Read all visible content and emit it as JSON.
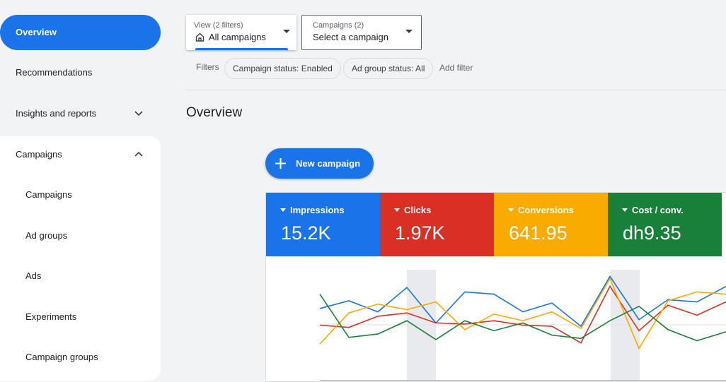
{
  "sidebar": {
    "items": [
      "Overview",
      "Recommendations",
      "Insights and reports",
      "Campaigns"
    ],
    "sub_items": [
      "Campaigns",
      "Ad groups",
      "Ads",
      "Experiments",
      "Campaign groups"
    ]
  },
  "toolbar": {
    "view": {
      "label": "View (2 filters)",
      "value": "All campaigns"
    },
    "campaigns": {
      "label": "Campaigns (2)",
      "value": "Select a campaign"
    },
    "filters_label": "Filters",
    "chips": [
      "Campaign status: Enabled",
      "Ad group status: All"
    ],
    "add_filter": "Add filter"
  },
  "page_title": "Overview",
  "new_campaign": "New campaign",
  "metrics": [
    {
      "name": "Impressions",
      "value": "15.2K",
      "color": "#1a73e8"
    },
    {
      "name": "Clicks",
      "value": "1.97K",
      "color": "#d93025"
    },
    {
      "name": "Conversions",
      "value": "641.95",
      "color": "#f9ab00"
    },
    {
      "name": "Cost / conv.",
      "value": "dh9.35",
      "color": "#188038"
    }
  ],
  "chart_data": {
    "type": "line",
    "ylim": [
      0,
      100
    ],
    "series": [
      {
        "name": "Impressions",
        "color": "#1a73e8",
        "values": [
          65,
          72,
          62,
          84,
          52,
          80,
          78,
          62,
          70,
          49,
          94,
          55,
          73,
          71,
          85
        ]
      },
      {
        "name": "Clicks",
        "color": "#d93025",
        "values": [
          50,
          48,
          58,
          61,
          52,
          51,
          54,
          50,
          49,
          34,
          85,
          45,
          68,
          59,
          71
        ]
      },
      {
        "name": "Conversions",
        "color": "#f9ab00",
        "values": [
          33,
          61,
          69,
          64,
          71,
          46,
          60,
          54,
          62,
          47,
          92,
          29,
          72,
          80,
          78
        ]
      },
      {
        "name": "Cost / conv.",
        "color": "#188038",
        "values": [
          78,
          39,
          42,
          54,
          37,
          54,
          45,
          52,
          41,
          38,
          54,
          67,
          46,
          36,
          44
        ]
      }
    ]
  }
}
